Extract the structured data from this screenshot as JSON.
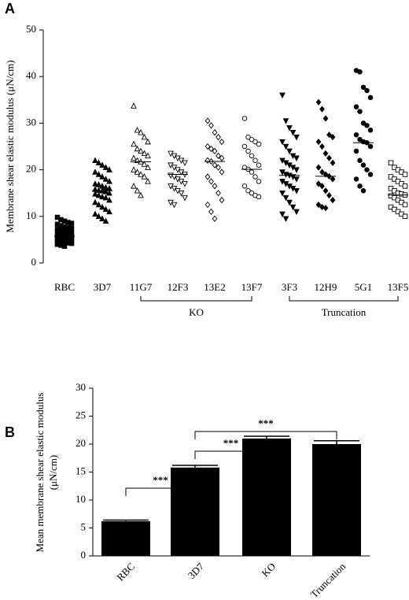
{
  "chart_data": [
    {
      "type": "strip",
      "panel_label": "A",
      "ylabel": "Membrane shear elastic modulus (μN/cm)",
      "ylim": [
        0,
        50
      ],
      "yticks": [
        0,
        10,
        20,
        30,
        40,
        50
      ],
      "categories": [
        "RBC",
        "3D7",
        "11G7",
        "12F3",
        "13E2",
        "13F7",
        "3F3",
        "12H9",
        "5G1",
        "13F5"
      ],
      "series": [
        {
          "name": "RBC",
          "marker": "square",
          "filled": true,
          "median": 5.7,
          "values": [
            9.8,
            9.3,
            9,
            8.7,
            8.5,
            8.3,
            8,
            7.8,
            7.6,
            7.4,
            7.2,
            7,
            6.8,
            6.6,
            6.4,
            6.2,
            6,
            5.9,
            5.8,
            5.7,
            5.6,
            5.5,
            5.4,
            5.3,
            5.2,
            5.1,
            5,
            4.9,
            4.8,
            4.7,
            4.6,
            4.5,
            4.4,
            4.3,
            4.2,
            4,
            3.8,
            3.6
          ]
        },
        {
          "name": "3D7",
          "marker": "triangle-up",
          "filled": true,
          "median": 15.5,
          "values": [
            22,
            21.5,
            21,
            20.5,
            20,
            19.5,
            19,
            18.5,
            18,
            17.5,
            17,
            16.8,
            16.5,
            16.2,
            16,
            15.8,
            15.6,
            15.5,
            15.3,
            15,
            14.8,
            14.5,
            14.2,
            14,
            13.5,
            13,
            12.5,
            12,
            11.5,
            11,
            10.5,
            10,
            9.5,
            9
          ]
        },
        {
          "name": "11G7",
          "marker": "triangle-up",
          "filled": false,
          "median": 21.7,
          "values": [
            33.7,
            28.5,
            28,
            27,
            26,
            25.5,
            24.5,
            24,
            23.5,
            23,
            22.5,
            22,
            21.7,
            21.2,
            20.5,
            20,
            19.5,
            19,
            18.5,
            17.5,
            16.5,
            15.5,
            14.5
          ]
        },
        {
          "name": "12F3",
          "marker": "triangle-down",
          "filled": false,
          "median": 19,
          "values": [
            23.5,
            23,
            22.5,
            22,
            21.5,
            21,
            20.5,
            20,
            19.5,
            19,
            18.8,
            18.5,
            18,
            17.5,
            17,
            16.5,
            16,
            15.5,
            15,
            14,
            13,
            12.5
          ]
        },
        {
          "name": "13E2",
          "marker": "diamond",
          "filled": false,
          "median": 21.8,
          "values": [
            30.5,
            29.5,
            28,
            27,
            26,
            25,
            24.5,
            24,
            23,
            22.5,
            22,
            21.8,
            21,
            20.5,
            19.5,
            18.5,
            17.5,
            16.5,
            15,
            13.5,
            12.5,
            11,
            9.5
          ]
        },
        {
          "name": "13F7",
          "marker": "circle",
          "filled": false,
          "median": 20.1,
          "values": [
            31,
            27,
            26.5,
            26,
            25.5,
            25,
            24,
            23,
            22,
            21,
            20.5,
            20.1,
            19.5,
            18.5,
            17.5,
            16.5,
            15.5,
            15,
            14.5,
            14.2
          ]
        },
        {
          "name": "3F3",
          "marker": "triangle-down",
          "filled": true,
          "median": 18.8,
          "values": [
            36,
            30.5,
            29,
            28,
            27,
            26,
            25,
            24,
            23,
            22.5,
            22,
            21.5,
            21,
            20.5,
            20,
            19.5,
            19,
            18.8,
            18.5,
            18,
            17.5,
            17,
            16.5,
            16,
            15.5,
            15,
            14,
            13,
            12,
            11,
            10.5,
            9.5
          ]
        },
        {
          "name": "12H9",
          "marker": "diamond",
          "filled": true,
          "median": 18.6,
          "values": [
            34.5,
            33,
            31,
            27.5,
            27,
            26,
            25,
            23.5,
            22.5,
            21.5,
            20.5,
            19.5,
            19,
            18.6,
            18,
            17,
            16.5,
            15.5,
            14.5,
            13.5,
            12.5,
            12,
            11.8
          ]
        },
        {
          "name": "5G1",
          "marker": "circle",
          "filled": true,
          "median": 25.8,
          "values": [
            41.3,
            41,
            37.7,
            37,
            35.5,
            33.5,
            32.5,
            30,
            29.5,
            28.5,
            27.5,
            26.5,
            26,
            25.8,
            25,
            24,
            22,
            21,
            20,
            19,
            18,
            16.5,
            15.5
          ]
        },
        {
          "name": "13F5",
          "marker": "square",
          "filled": false,
          "median": 14.6,
          "values": [
            21.5,
            20.5,
            20,
            19.5,
            19,
            18.5,
            18,
            17.5,
            17,
            16.5,
            16,
            15.5,
            15,
            14.8,
            14.6,
            14.4,
            14,
            13.5,
            13,
            12.5,
            12,
            11.5,
            11,
            10.5,
            10
          ]
        }
      ],
      "groups": [
        {
          "label": "KO",
          "from": "11G7",
          "to": "13F7"
        },
        {
          "label": "Truncation",
          "from": "3F3",
          "to": "13F5"
        }
      ]
    },
    {
      "type": "bar",
      "panel_label": "B",
      "ylabel": [
        "Mean membrane shear elastic modulus",
        "(μN/cm)"
      ],
      "ylim": [
        0,
        30
      ],
      "yticks": [
        0,
        5,
        10,
        15,
        20,
        25,
        30
      ],
      "color": "#000000",
      "categories": [
        "RBC",
        "3D7",
        "KO",
        "Truncation"
      ],
      "values": [
        6.2,
        15.8,
        21.0,
        20.0
      ],
      "errors": [
        0.2,
        0.4,
        0.4,
        0.6
      ],
      "comparisons": [
        {
          "label": "***",
          "from": "RBC",
          "to": "3D7"
        },
        {
          "label": "***",
          "from": "3D7",
          "to": "KO"
        },
        {
          "label": "***",
          "from": "3D7",
          "to": "Truncation"
        }
      ]
    }
  ]
}
